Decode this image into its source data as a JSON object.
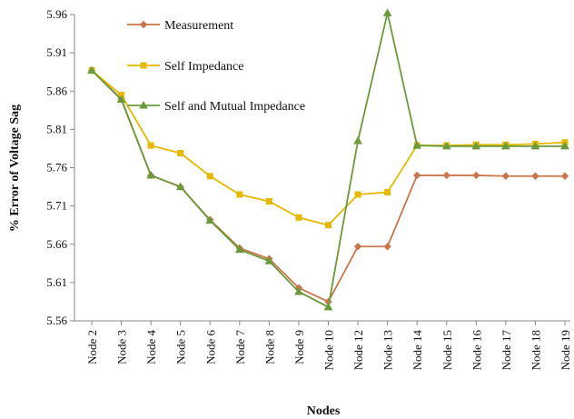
{
  "chart_data": {
    "type": "line",
    "xlabel": "Nodes",
    "ylabel": "% Error of Voltage Sag",
    "ylim": [
      5.56,
      5.96
    ],
    "yticks": [
      "5.56",
      "5.61",
      "5.66",
      "5.71",
      "5.76",
      "5.81",
      "5.86",
      "5.91",
      "5.96"
    ],
    "grid": false,
    "legend_position": "top-center",
    "categories": [
      "Node 2",
      "Node 3",
      "Node 4",
      "Node 5",
      "Node 6",
      "Node 7",
      "Node 8",
      "Node 9",
      "Node 10",
      "Node 12",
      "Node 13",
      "Node 14",
      "Node 15",
      "Node 16",
      "Node 17",
      "Node 18",
      "Node 19"
    ],
    "series": [
      {
        "name": "Measurement",
        "color": "#c8764a",
        "marker": "diamond",
        "values": [
          5.887,
          5.85,
          5.75,
          5.735,
          5.692,
          5.655,
          5.641,
          5.603,
          5.585,
          5.657,
          5.657,
          5.75,
          5.75,
          5.75,
          5.749,
          5.749,
          5.749
        ]
      },
      {
        "name": "Self Impedance",
        "color": "#e6b800",
        "marker": "square",
        "values": [
          5.887,
          5.855,
          5.789,
          5.779,
          5.749,
          5.725,
          5.716,
          5.695,
          5.685,
          5.725,
          5.728,
          5.789,
          5.789,
          5.79,
          5.79,
          5.791,
          5.793
        ]
      },
      {
        "name": "Self and Mutual Impedance",
        "color": "#6b9a3a",
        "marker": "triangle",
        "values": [
          5.887,
          5.849,
          5.75,
          5.735,
          5.691,
          5.653,
          5.638,
          5.598,
          5.578,
          5.795,
          5.962,
          5.789,
          5.788,
          5.788,
          5.788,
          5.788,
          5.788
        ]
      }
    ]
  }
}
